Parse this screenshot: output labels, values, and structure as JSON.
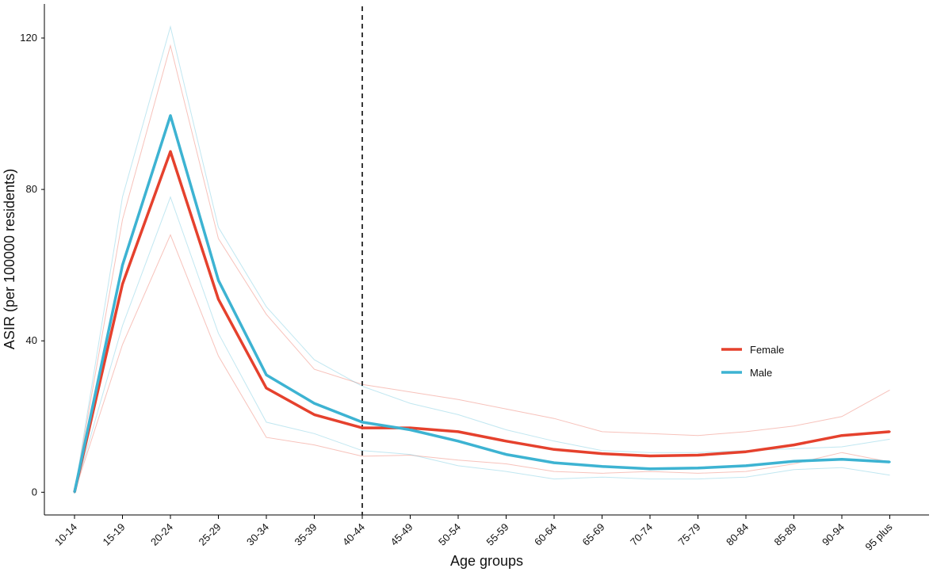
{
  "chart_data": {
    "type": "line",
    "title": "",
    "xlabel": "Age groups",
    "ylabel": "ASIR (per 100000 residents)",
    "categories": [
      "10-14",
      "15-19",
      "20-24",
      "25-29",
      "30-34",
      "35-39",
      "40-44",
      "45-49",
      "50-54",
      "55-59",
      "60-64",
      "65-69",
      "70-74",
      "75-79",
      "80-84",
      "85-89",
      "90-94",
      "95 plus"
    ],
    "yticks": [
      0,
      40,
      80,
      120
    ],
    "ylim": [
      -6,
      129
    ],
    "grid": false,
    "legend_position": "right",
    "reference_line": {
      "category": "40-44",
      "style": "dashed"
    },
    "series": [
      {
        "name": "Female",
        "color": "#e5412d",
        "values": [
          0,
          55,
          90,
          51,
          27.5,
          20.5,
          17,
          17,
          16,
          13.5,
          11.3,
          10.2,
          9.6,
          9.8,
          10.7,
          12.5,
          15,
          16
        ],
        "upper": [
          0,
          72,
          118,
          67,
          47,
          32.5,
          28.5,
          26.5,
          24.5,
          22,
          19.5,
          16,
          15.5,
          15,
          16,
          17.5,
          20,
          27
        ],
        "lower": [
          0,
          39,
          68,
          36,
          14.5,
          12.5,
          9.5,
          9.8,
          8.5,
          7.5,
          5.5,
          5,
          5.5,
          5,
          5.5,
          7.5,
          10.5,
          8
        ]
      },
      {
        "name": "Male",
        "color": "#3db3d2",
        "values": [
          0,
          60,
          99.5,
          56,
          31,
          23.5,
          18.5,
          16.5,
          13.5,
          10,
          7.8,
          6.8,
          6.2,
          6.4,
          7,
          8.2,
          8.7,
          8
        ],
        "upper": [
          0,
          78,
          123,
          70,
          49,
          35,
          28,
          23.5,
          20.5,
          16.5,
          13.5,
          11,
          10.5,
          10.5,
          11,
          11.5,
          12,
          14
        ],
        "lower": [
          0,
          44,
          78,
          42,
          18.5,
          15.5,
          11,
          10,
          7,
          5.5,
          3.5,
          4,
          3.5,
          3.5,
          4,
          6,
          6.5,
          4.5
        ]
      }
    ]
  }
}
